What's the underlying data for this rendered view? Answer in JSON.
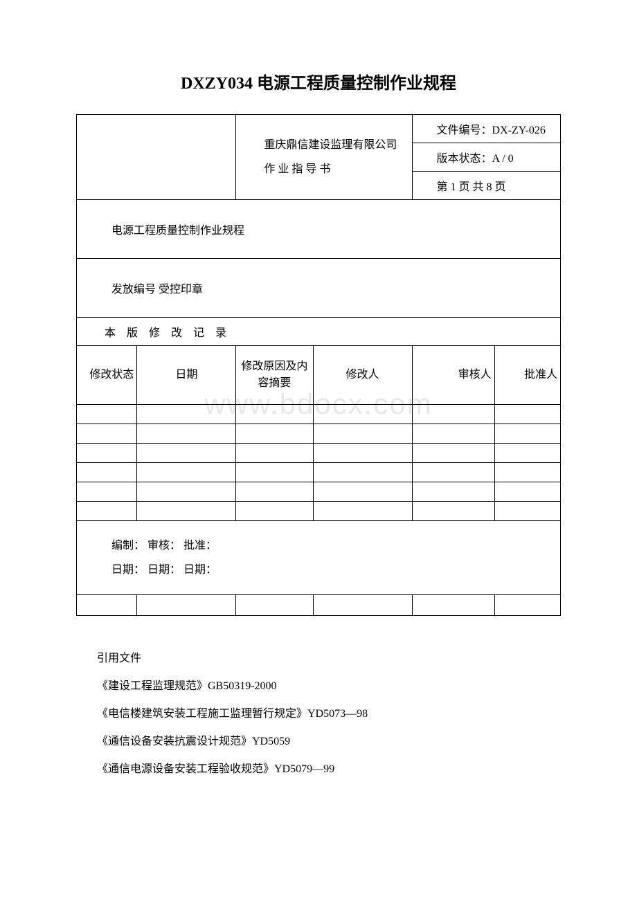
{
  "page_title": "DXZY034 电源工程质量控制作业规程",
  "header": {
    "company": "重庆鼎信建设监理有限公司",
    "doc_type": "作 业 指 导 书",
    "doc_number_label": "文件编号：",
    "doc_number": "DX-ZY-026",
    "version_label": "版本状态：",
    "version": "A / 0",
    "page_info": "第 1 页 共 8 页"
  },
  "section1": "电源工程质量控制作业规程",
  "section2": "发放编号   受控印章",
  "revision_title": "本 版 修 改 记 录",
  "revision_headers": {
    "col1": "修改状态",
    "col2": "日期",
    "col3": "修改原因及内容摘要",
    "col4": "修改人",
    "col5": "审核人",
    "col6": "批准人"
  },
  "signatures": {
    "line1": "编制：   审核：   批准：",
    "line2": "日期：   日期：   日期："
  },
  "references": {
    "title": "引用文件",
    "items": [
      "《建设工程监理规范》GB50319-2000",
      "《电信楼建筑安装工程施工监理暂行规定》YD5073—98",
      "《通信设备安装抗震设计规范》YD5059",
      "《通信电源设备安装工程验收规范》YD5079—99"
    ]
  },
  "watermark": "www.bdocx.com"
}
